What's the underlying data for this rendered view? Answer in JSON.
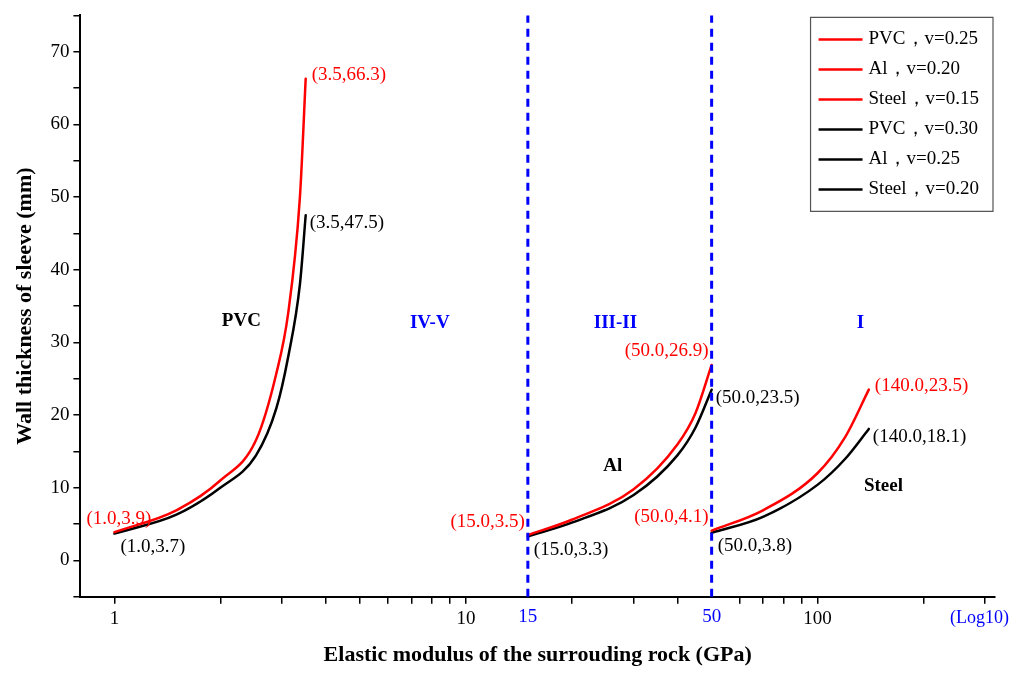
{
  "chart_data": {
    "type": "line",
    "xlabel": "Elastic modulus of the surrouding rock (GPa)",
    "ylabel": "Wall thickness of sleeve (mm)",
    "log": "x",
    "xlim": [
      0.8,
      320
    ],
    "xticks": [
      1,
      {
        "value": 2,
        "label": null
      },
      {
        "value": 3,
        "label": null
      },
      {
        "value": 4,
        "label": null
      },
      {
        "value": 5,
        "label": null
      },
      {
        "value": 6,
        "label": null
      },
      {
        "value": 7,
        "label": null
      },
      {
        "value": 8,
        "label": null
      },
      {
        "value": 9,
        "label": null
      },
      10,
      {
        "value": 20,
        "label": null
      },
      {
        "value": 30,
        "label": null
      },
      {
        "value": 40,
        "label": null
      },
      {
        "value": 60,
        "label": null
      },
      {
        "value": 70,
        "label": null
      },
      {
        "value": 80,
        "label": null
      },
      {
        "value": 90,
        "label": null
      },
      100,
      {
        "value": 200,
        "label": null
      },
      {
        "value": 300,
        "label": null
      }
    ],
    "ylim": [
      -5,
      75
    ],
    "yticks": [
      {
        "value": -5,
        "label": null
      },
      0,
      {
        "value": 5,
        "label": null
      },
      10,
      {
        "value": 15,
        "label": null
      },
      20,
      {
        "value": 25,
        "label": null
      },
      30,
      {
        "value": 35,
        "label": null
      },
      40,
      {
        "value": 45,
        "label": null
      },
      50,
      {
        "value": 55,
        "label": null
      },
      60,
      {
        "value": 65,
        "label": null
      },
      70,
      {
        "value": 75,
        "label": null
      }
    ],
    "grid": false,
    "legend": "top right",
    "marker": "none",
    "line_style": "solid",
    "series": [
      {
        "name": "PVC，v=0.25",
        "color": "#ff0000",
        "x": [
          1,
          1.5,
          2,
          2.53,
          2.89,
          3.12,
          3.37,
          3.5
        ],
        "values": [
          3.9,
          6.9,
          11,
          16.6,
          25.8,
          34,
          50,
          66.3
        ],
        "value_labels": [
          "(1.0,3.9)",
          null,
          null,
          null,
          null,
          null,
          null,
          "(3.5,66.3)"
        ]
      },
      {
        "name": "Al，v=0.20",
        "color": "#ff0000",
        "x": [
          15,
          20,
          30,
          40,
          45,
          50
        ],
        "values": [
          3.5,
          5.6,
          9.8,
          16,
          20.3,
          26.9
        ],
        "value_labels": [
          "(15.0,3.5)",
          null,
          null,
          null,
          null,
          "(50.0,26.9)"
        ]
      },
      {
        "name": "Steel，v=0.15",
        "color": "#ff0000",
        "x": [
          50,
          70,
          100,
          120,
          140
        ],
        "values": [
          4.1,
          6.9,
          12,
          17,
          23.5
        ],
        "value_labels": [
          "(50.0,4.1)",
          null,
          null,
          null,
          "(140.0,23.5)"
        ]
      },
      {
        "name": "PVC，v=0.30",
        "color": "#000000",
        "x": [
          1,
          1.5,
          2,
          2.53,
          2.89,
          3.12,
          3.37,
          3.5
        ],
        "values": [
          3.7,
          6.3,
          10,
          14.5,
          21,
          28,
          38,
          47.5
        ],
        "value_labels": [
          "(1.0,3.7)",
          null,
          null,
          null,
          null,
          null,
          null,
          "(3.5,47.5)"
        ]
      },
      {
        "name": "Al，v=0.25",
        "color": "#000000",
        "x": [
          15,
          20,
          30,
          40,
          45,
          50
        ],
        "values": [
          3.3,
          5.2,
          9,
          14.5,
          18.3,
          23.5
        ],
        "value_labels": [
          "(15.0,3.3)",
          null,
          null,
          null,
          null,
          "(50.0,23.5)"
        ]
      },
      {
        "name": "Steel，v=0.20",
        "color": "#000000",
        "x": [
          50,
          70,
          100,
          120,
          140
        ],
        "values": [
          3.8,
          6,
          10.4,
          14,
          18.1
        ],
        "value_labels": [
          "(50.0,3.8)",
          null,
          null,
          null,
          "(140.0,18.1)"
        ]
      }
    ],
    "ref_lines": [
      {
        "axis": "x",
        "value": 15,
        "label": "15",
        "color": "#0000ff",
        "line_style": "dashed"
      },
      {
        "axis": "x",
        "value": 50,
        "label": "50",
        "color": "#0000ff",
        "line_style": "dashed"
      }
    ],
    "annotations": [
      "IV-V",
      "III-II",
      "I",
      "PVC",
      "Al",
      "Steel",
      "(Log10)"
    ]
  }
}
